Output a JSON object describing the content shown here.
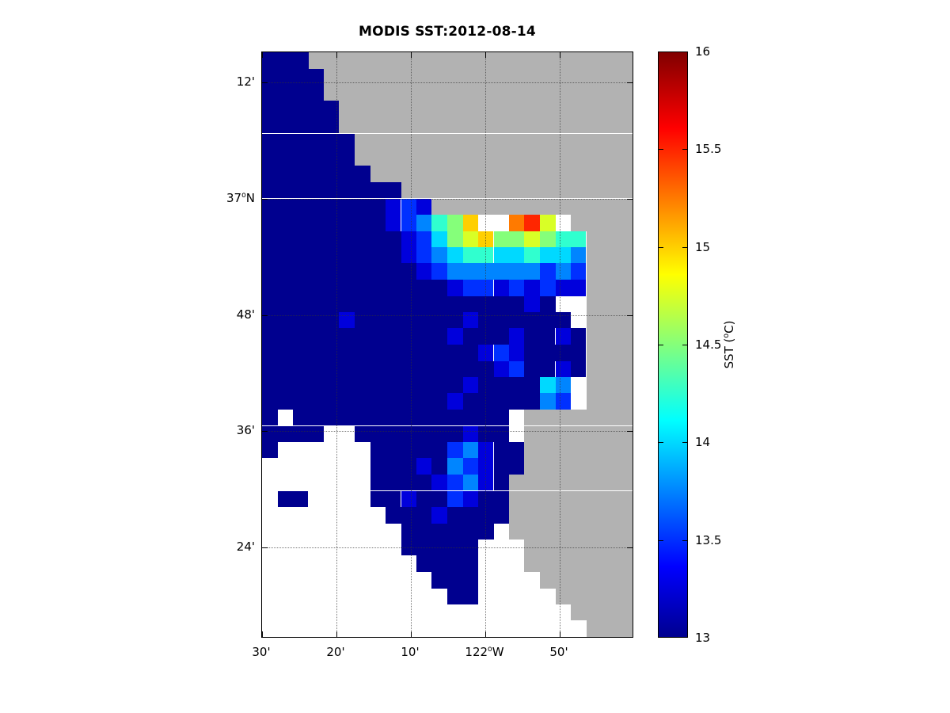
{
  "figure": {
    "background_color": "#FFFFFF"
  },
  "chart_data": {
    "type": "heatmap",
    "title": "MODIS SST:2012-08-14",
    "x_axis": {
      "tick_labels": [
        "30'",
        "20'",
        "10'",
        "122^oW",
        "50'"
      ],
      "description": "Longitude (west), ticks every 10 arc-minutes from 122°30'W"
    },
    "y_axis": {
      "tick_labels": [
        "12'",
        "37^oN",
        "48'",
        "36'",
        "24'"
      ],
      "description": "Latitude (north), ticks every 12 arc-minutes from 37°12'N down to 36°24'N"
    },
    "axis_extent_estimate": {
      "west": "122°30'W",
      "east": "~121°42'W",
      "north": "~37°14'N",
      "south": "~36°14'N"
    },
    "colorbar": {
      "label": "SST (^oC)",
      "min": 13,
      "max": 16,
      "tick_labels": [
        "16",
        "15.5",
        "15",
        "14.5",
        "14",
        "13.5",
        "13"
      ],
      "colormap": "jet",
      "gradient_stops": [
        [
          0,
          "#00008F"
        ],
        [
          0.12,
          "#0000FF"
        ],
        [
          0.37,
          "#00FFFF"
        ],
        [
          0.62,
          "#FFFF00"
        ],
        [
          0.87,
          "#FF0000"
        ],
        [
          1,
          "#800000"
        ]
      ]
    },
    "palette": {
      "0": "#00008F",
      "1": "#0000DC",
      "2": "#0030FF",
      "3": "#0085FF",
      "4": "#00D9FF",
      "5": "#30FFCF",
      "6": "#85FF7A",
      "7": "#D9FF26",
      "8": "#FFCF00",
      "9": "#FF7A00",
      "A": "#FF2600",
      "B": "#D10000",
      "C": "#800000",
      "L": "#B2B2B2",
      ".": "#FFFFFF"
    },
    "grid": {
      "legend": "Each character is one map cell. L = land (gray), . = no data (white), codes 0-C = SST value where SST(°C) = 13 + code*0.25",
      "cols": 24,
      "rows": 36,
      "cell_codes": [
        "000LLLLLLLLLLLLLLLLLLLLL",
        "0000LLLLLLLLLLLLLLLLLLLL",
        "0000LLLLLLLLLLLLLLLLLLLL",
        "00000LLLLLLLLLLLLLLLLLLL",
        "00000LLLLLLLLLLLLLLLLLLL",
        "000000LLLLLLLLLLLLLLLLLL",
        "000000LLLLLLLLLLLLLLLLLL",
        "0000000LLLLLLLLLLLLLLLLL",
        "000000000LLLLLLLLLLLLLLL",
        "00000000121LLLLLLLLLLLLL",
        "00000000123568..9A7.LLLL",
        "000000000124678667655LLL",
        "000000000123455445443LLL",
        "000000000012333333232LLL",
        "000000000000122121211LLL",
        "0000000000000000010..LLL",
        "00000100000001000000.LLL",
        "000000000000100010010LLL",
        "000000000000001210000LLL",
        "000000000000000120010LLL",
        "00000000000001000043.LLL",
        "00000000000010000032.LLL",
        "0.00000000000000.LLLLLLL",
        "0000..0000000100.LLLLLLL",
        "0......0000023100LLLLLLL",
        ".......0001032100LLLLLLL",
        ".......000012310LLLLLLLL",
        ".00....001002100LLLLLLLL",
        "........00010000LLLLLLLL",
        ".........000000.LLLLLLLL",
        ".........00000...LLLLLLL",
        "..........0000...LLLLLLL",
        "...........000....LLLLLL",
        "............00.....LLLLL",
        "....................LLLL",
        ".....................LLL"
      ]
    }
  }
}
